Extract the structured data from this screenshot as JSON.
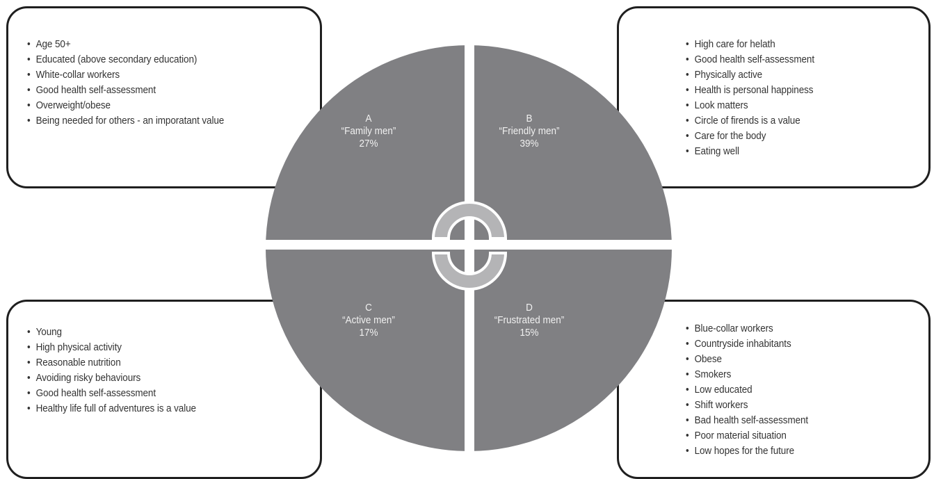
{
  "segments": {
    "a": {
      "letter": "A",
      "name": "“Family men”",
      "percent": "27%",
      "traits": [
        "Age 50+",
        "Educated (above secondary education)",
        "White-collar workers",
        "Good health self-assessment",
        "Overweight/obese",
        "Being needed for others - an imporatant value"
      ]
    },
    "b": {
      "letter": "B",
      "name": "“Friendly men”",
      "percent": "39%",
      "traits": [
        "High care for helath",
        "Good health self-assessment",
        "Physically active",
        "Health is personal happiness",
        "Look matters",
        "Circle of firends is a value",
        "Care for the body",
        "Eating well"
      ]
    },
    "c": {
      "letter": "C",
      "name": "“Active men”",
      "percent": "17%",
      "traits": [
        "Young",
        "High physical activity",
        "Reasonable nutrition",
        "Avoiding risky behaviours",
        "Good health self-assessment",
        "Healthy life full of adventures is a value"
      ]
    },
    "d": {
      "letter": "D",
      "name": "“Frustrated men”",
      "percent": "15%",
      "traits": [
        "Blue-collar workers",
        "Countryside inhabitants",
        "Obese",
        "Smokers",
        "Low educated",
        "Shift workers",
        "Bad health self-assessment",
        "Poor material situation",
        "Low hopes for the future"
      ]
    }
  },
  "colors": {
    "quadrant_fill": "#808083",
    "divider": "#ffffff",
    "center_ring": "#b4b4b6",
    "box_border": "#1f1f1f"
  }
}
